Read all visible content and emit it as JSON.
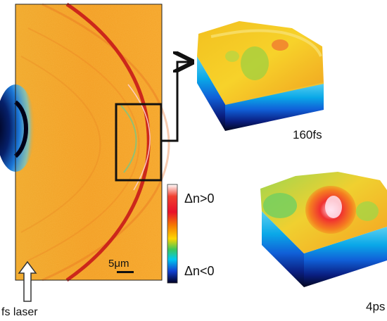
{
  "figure": {
    "scale_bar_label": "5μm",
    "laser_label": "fs laser",
    "colorbar": {
      "top_label": "Δn>0",
      "bottom_label": "Δn<0",
      "colors": [
        "#ffffff",
        "#e8102a",
        "#f57c00",
        "#ffd600",
        "#3cc75a",
        "#00c8f0",
        "#1040d0",
        "#000022"
      ]
    },
    "panels": [
      {
        "time_label": "160fs"
      },
      {
        "time_label": "4ps"
      }
    ],
    "colors": {
      "background_field": "#f2a023",
      "ring": "#c81a1a",
      "box": "#111111"
    }
  }
}
